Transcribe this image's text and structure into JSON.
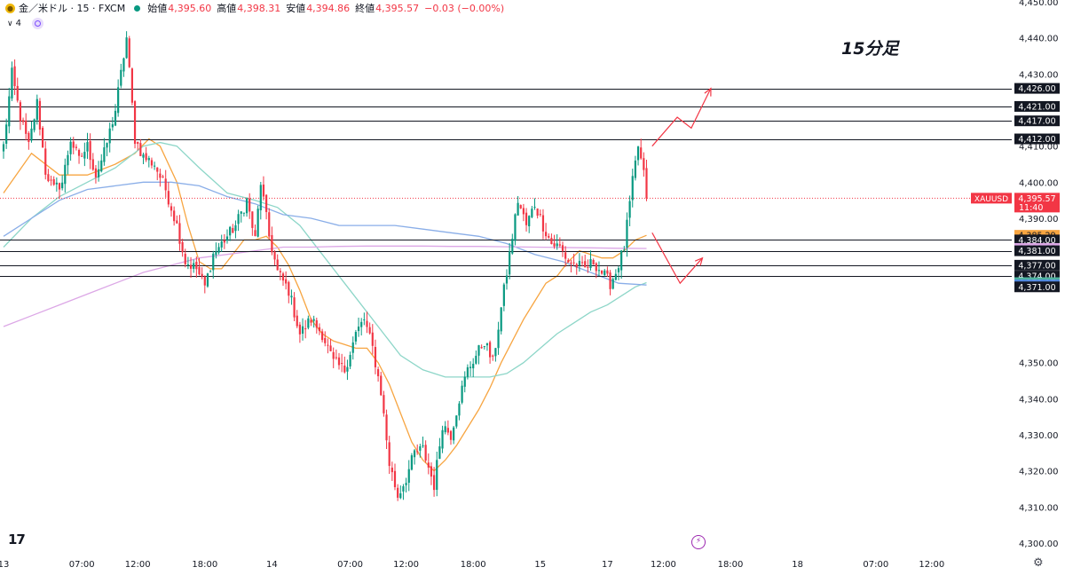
{
  "header": {
    "symbol": "金／米ドル · 15 · FXCM",
    "coin_icon": "gold-coin-icon",
    "open_label": "始値",
    "open": "4,395.60",
    "high_label": "高値",
    "high": "4,398.31",
    "low_label": "安値",
    "low": "4,394.86",
    "close_label": "終値",
    "close": "4,395.57",
    "change": "−0.03 (−0.00%)",
    "indicator_count": "4",
    "up_color": "#089981",
    "down_color": "#f23645"
  },
  "annotation": "15分足",
  "logo": "17",
  "chart_data": {
    "type": "candlestick",
    "title": "15分足",
    "symbol": "金／米ドル · 15 · FXCM",
    "ylim": [
      4300,
      4450
    ],
    "y_ticks": [
      {
        "v": 4450,
        "label": "4,450.00"
      },
      {
        "v": 4440,
        "label": "4,440.00"
      },
      {
        "v": 4430,
        "label": "4,430.00"
      },
      {
        "v": 4410,
        "label": "4,410.00"
      },
      {
        "v": 4400,
        "label": "4,400.00"
      },
      {
        "v": 4390,
        "label": "4,390.00"
      },
      {
        "v": 4350,
        "label": "4,350.00"
      },
      {
        "v": 4340,
        "label": "4,340.00"
      },
      {
        "v": 4330,
        "label": "4,330.00"
      },
      {
        "v": 4320,
        "label": "4,320.00"
      },
      {
        "v": 4310,
        "label": "4,310.00"
      },
      {
        "v": 4300,
        "label": "4,300.00"
      }
    ],
    "x_ticks": [
      {
        "i": 0,
        "label": "13"
      },
      {
        "i": 28,
        "label": "07:00"
      },
      {
        "i": 48,
        "label": "12:00"
      },
      {
        "i": 72,
        "label": "18:00"
      },
      {
        "i": 96,
        "label": "14"
      },
      {
        "i": 124,
        "label": "07:00"
      },
      {
        "i": 144,
        "label": "12:00"
      },
      {
        "i": 168,
        "label": "18:00"
      },
      {
        "i": 192,
        "label": "15"
      },
      {
        "i": 216,
        "label": "17"
      },
      {
        "i": 236,
        "label": "12:00"
      },
      {
        "i": 260,
        "label": "18:00"
      },
      {
        "i": 284,
        "label": "18"
      },
      {
        "i": 312,
        "label": "07:00"
      },
      {
        "i": 332,
        "label": "12:00"
      }
    ],
    "n_slots": 350,
    "anchors": [
      [
        0,
        4410
      ],
      [
        3,
        4430
      ],
      [
        6,
        4418
      ],
      [
        9,
        4410
      ],
      [
        12,
        4422
      ],
      [
        15,
        4403
      ],
      [
        18,
        4398
      ],
      [
        21,
        4400
      ],
      [
        24,
        4412
      ],
      [
        27,
        4406
      ],
      [
        30,
        4410
      ],
      [
        33,
        4402
      ],
      [
        36,
        4408
      ],
      [
        40,
        4420
      ],
      [
        44,
        4440
      ],
      [
        47,
        4412
      ],
      [
        50,
        4407
      ],
      [
        54,
        4405
      ],
      [
        58,
        4398
      ],
      [
        62,
        4388
      ],
      [
        65,
        4378
      ],
      [
        69,
        4376
      ],
      [
        72,
        4371
      ],
      [
        75,
        4380
      ],
      [
        79,
        4384
      ],
      [
        83,
        4388
      ],
      [
        87,
        4395
      ],
      [
        90,
        4384
      ],
      [
        92,
        4400
      ],
      [
        95,
        4385
      ],
      [
        98,
        4375
      ],
      [
        102,
        4370
      ],
      [
        106,
        4358
      ],
      [
        110,
        4362
      ],
      [
        114,
        4358
      ],
      [
        118,
        4350
      ],
      [
        122,
        4348
      ],
      [
        126,
        4358
      ],
      [
        129,
        4362
      ],
      [
        132,
        4354
      ],
      [
        135,
        4342
      ],
      [
        138,
        4322
      ],
      [
        141,
        4313
      ],
      [
        144,
        4318
      ],
      [
        147,
        4325
      ],
      [
        150,
        4326
      ],
      [
        152,
        4321
      ],
      [
        154,
        4316
      ],
      [
        157,
        4333
      ],
      [
        160,
        4330
      ],
      [
        163,
        4340
      ],
      [
        166,
        4348
      ],
      [
        169,
        4352
      ],
      [
        172,
        4356
      ],
      [
        175,
        4350
      ],
      [
        178,
        4365
      ],
      [
        181,
        4380
      ],
      [
        184,
        4395
      ],
      [
        187,
        4388
      ],
      [
        190,
        4394
      ],
      [
        193,
        4388
      ],
      [
        196,
        4383
      ],
      [
        199,
        4382
      ],
      [
        202,
        4378
      ],
      [
        205,
        4377
      ],
      [
        208,
        4376
      ],
      [
        211,
        4378
      ],
      [
        214,
        4375
      ],
      [
        217,
        4372
      ],
      [
        219,
        4375
      ],
      [
        222,
        4382
      ],
      [
        225,
        4400
      ],
      [
        227,
        4410
      ],
      [
        229,
        4402
      ],
      [
        230,
        4395.57
      ]
    ],
    "moving_averages": [
      {
        "color": "#f7a541",
        "points": [
          [
            0,
            4397
          ],
          [
            10,
            4408
          ],
          [
            20,
            4402
          ],
          [
            30,
            4402
          ],
          [
            40,
            4405
          ],
          [
            47,
            4408
          ],
          [
            52,
            4412
          ],
          [
            56,
            4410
          ],
          [
            62,
            4400
          ],
          [
            66,
            4388
          ],
          [
            70,
            4378
          ],
          [
            74,
            4376
          ],
          [
            78,
            4376
          ],
          [
            82,
            4380
          ],
          [
            86,
            4384
          ],
          [
            90,
            4384
          ],
          [
            94,
            4385
          ],
          [
            98,
            4382
          ],
          [
            102,
            4377
          ],
          [
            106,
            4370
          ],
          [
            110,
            4362
          ],
          [
            114,
            4358
          ],
          [
            118,
            4356
          ],
          [
            122,
            4355
          ],
          [
            126,
            4354
          ],
          [
            130,
            4354
          ],
          [
            134,
            4350
          ],
          [
            138,
            4344
          ],
          [
            142,
            4336
          ],
          [
            146,
            4328
          ],
          [
            150,
            4323
          ],
          [
            154,
            4320
          ],
          [
            158,
            4323
          ],
          [
            162,
            4327
          ],
          [
            166,
            4332
          ],
          [
            170,
            4337
          ],
          [
            174,
            4343
          ],
          [
            178,
            4350
          ],
          [
            182,
            4356
          ],
          [
            186,
            4362
          ],
          [
            190,
            4367
          ],
          [
            194,
            4372
          ],
          [
            198,
            4374
          ],
          [
            202,
            4378
          ],
          [
            206,
            4381
          ],
          [
            210,
            4380
          ],
          [
            214,
            4379
          ],
          [
            218,
            4379
          ],
          [
            222,
            4381
          ],
          [
            226,
            4384
          ],
          [
            230,
            4385.29
          ]
        ]
      },
      {
        "color": "#8dd6c8",
        "points": [
          [
            0,
            4382
          ],
          [
            10,
            4390
          ],
          [
            20,
            4396
          ],
          [
            30,
            4400
          ],
          [
            40,
            4404
          ],
          [
            50,
            4410
          ],
          [
            56,
            4411
          ],
          [
            62,
            4410
          ],
          [
            70,
            4404
          ],
          [
            80,
            4397
          ],
          [
            90,
            4395
          ],
          [
            98,
            4393
          ],
          [
            106,
            4388
          ],
          [
            114,
            4380
          ],
          [
            122,
            4372
          ],
          [
            130,
            4364
          ],
          [
            136,
            4358
          ],
          [
            142,
            4352
          ],
          [
            150,
            4348
          ],
          [
            158,
            4346
          ],
          [
            166,
            4346
          ],
          [
            174,
            4346
          ],
          [
            180,
            4347
          ],
          [
            186,
            4350
          ],
          [
            192,
            4354
          ],
          [
            198,
            4358
          ],
          [
            204,
            4361
          ],
          [
            210,
            4364
          ],
          [
            216,
            4366
          ],
          [
            222,
            4369
          ],
          [
            226,
            4371
          ],
          [
            230,
            4372.17
          ]
        ]
      },
      {
        "color": "#8aaee8",
        "points": [
          [
            0,
            4385
          ],
          [
            10,
            4390
          ],
          [
            20,
            4395
          ],
          [
            30,
            4398
          ],
          [
            40,
            4399
          ],
          [
            50,
            4400
          ],
          [
            60,
            4400
          ],
          [
            70,
            4399
          ],
          [
            80,
            4396
          ],
          [
            90,
            4394
          ],
          [
            100,
            4391
          ],
          [
            110,
            4390
          ],
          [
            120,
            4388
          ],
          [
            130,
            4388
          ],
          [
            140,
            4388
          ],
          [
            150,
            4387
          ],
          [
            160,
            4386
          ],
          [
            170,
            4385
          ],
          [
            180,
            4383
          ],
          [
            190,
            4380
          ],
          [
            200,
            4378
          ],
          [
            210,
            4375
          ],
          [
            220,
            4372
          ],
          [
            230,
            4371.52
          ]
        ]
      },
      {
        "color": "#dca7e6",
        "points": [
          [
            0,
            4360
          ],
          [
            10,
            4363
          ],
          [
            20,
            4366
          ],
          [
            30,
            4369
          ],
          [
            40,
            4372
          ],
          [
            50,
            4375
          ],
          [
            60,
            4377
          ],
          [
            70,
            4379
          ],
          [
            80,
            4380
          ],
          [
            90,
            4381
          ],
          [
            100,
            4382
          ],
          [
            110,
            4382
          ],
          [
            120,
            4382.2
          ],
          [
            130,
            4382.3
          ],
          [
            140,
            4382.3
          ],
          [
            150,
            4382.3
          ],
          [
            160,
            4382.2
          ],
          [
            170,
            4382.2
          ],
          [
            180,
            4382.1
          ],
          [
            190,
            4382
          ],
          [
            200,
            4381.9
          ],
          [
            210,
            4381.8
          ],
          [
            220,
            4381.7
          ],
          [
            230,
            4381.65
          ]
        ]
      }
    ],
    "horizontal_lines": [
      4426,
      4421,
      4417,
      4412,
      4384,
      4381,
      4377,
      4374
    ],
    "price_line": 4395.57,
    "price_labels": [
      {
        "v": 4426.0,
        "label": "4,426.00",
        "bg": "#131722",
        "fg": "#ffffff"
      },
      {
        "v": 4421.0,
        "label": "4,421.00",
        "bg": "#131722",
        "fg": "#ffffff"
      },
      {
        "v": 4417.0,
        "label": "4,417.00",
        "bg": "#131722",
        "fg": "#ffffff"
      },
      {
        "v": 4412.0,
        "label": "4,412.00",
        "bg": "#131722",
        "fg": "#ffffff"
      },
      {
        "v": 4395.57,
        "label": "4,395.57",
        "sub": "11:40",
        "bg": "#f23645",
        "fg": "#ffffff"
      },
      {
        "v": 4385.29,
        "label": "4,385.29",
        "bg": "#f7a541",
        "fg": "#131722"
      },
      {
        "v": 4384.0,
        "label": "4,384.00",
        "bg": "#131722",
        "fg": "#ffffff"
      },
      {
        "v": 4381.65,
        "label": "4,381.65",
        "bg": "#dca7e6",
        "fg": "#131722"
      },
      {
        "v": 4381.0,
        "label": "4,381.00",
        "bg": "#131722",
        "fg": "#ffffff"
      },
      {
        "v": 4377.0,
        "label": "4,377.00",
        "bg": "#131722",
        "fg": "#ffffff"
      },
      {
        "v": 4374.0,
        "label": "4,374.00",
        "bg": "#131722",
        "fg": "#ffffff"
      },
      {
        "v": 4372.17,
        "label": "4,372.17",
        "bg": "#4fb39f",
        "fg": "#ffffff"
      },
      {
        "v": 4371.52,
        "label": "4,371.52",
        "bg": "#4e86e0",
        "fg": "#ffffff"
      },
      {
        "v": 4371.0,
        "label": "4,371.00",
        "bg": "#131722",
        "fg": "#ffffff"
      }
    ],
    "symbol_tag": "XAUUSD",
    "scenario_arrows": [
      {
        "color": "#f23645",
        "points": [
          [
            232,
            4410
          ],
          [
            241,
            4418
          ],
          [
            246,
            4415
          ],
          [
            253,
            4426
          ]
        ]
      },
      {
        "color": "#f23645",
        "points": [
          [
            232,
            4386
          ],
          [
            242,
            4372
          ],
          [
            250,
            4379
          ]
        ]
      }
    ]
  }
}
